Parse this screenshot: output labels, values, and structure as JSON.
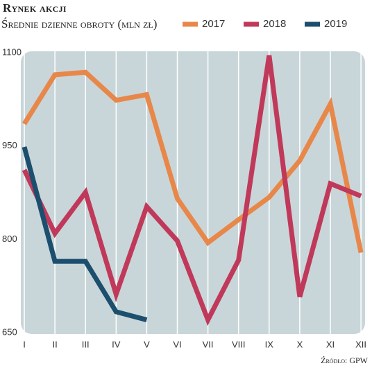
{
  "chart_data": {
    "type": "line",
    "title": "Rynek akcji",
    "subtitle": "Średnie dzienne obroty (mln zł)",
    "source": "Źródło: GPW",
    "categories": [
      "I",
      "II",
      "III",
      "IV",
      "V",
      "VI",
      "VII",
      "VIII",
      "IX",
      "X",
      "XI",
      "XII"
    ],
    "series": [
      {
        "name": "2017",
        "color": "#e8874a",
        "values": [
          990,
          1069,
          1073,
          1028,
          1037,
          870,
          799,
          836,
          872,
          931,
          1022,
          783
        ]
      },
      {
        "name": "2018",
        "color": "#c0395a",
        "values": [
          916,
          814,
          880,
          716,
          857,
          802,
          675,
          771,
          1100,
          712,
          894,
          874
        ]
      },
      {
        "name": "2019",
        "color": "#1c4e6e",
        "values": [
          953,
          769,
          769,
          688,
          675,
          null,
          null,
          null,
          null,
          null,
          null,
          null
        ]
      }
    ],
    "ylim": [
      650,
      1100
    ],
    "yticks": [
      650,
      800,
      950,
      1100
    ],
    "grid": true
  }
}
